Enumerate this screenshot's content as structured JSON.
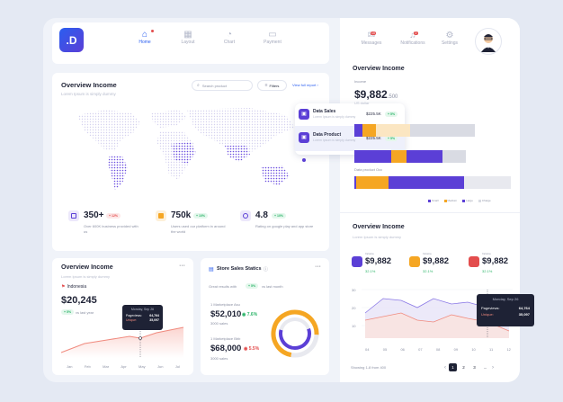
{
  "nav": {
    "logo": ".D",
    "items": [
      {
        "label": "Home"
      },
      {
        "label": "Layout"
      },
      {
        "label": "Chart"
      },
      {
        "label": "Payment"
      }
    ],
    "right": [
      {
        "label": "Messages",
        "badge": "10"
      },
      {
        "label": "Notifications",
        "badge": "2"
      },
      {
        "label": "Settings"
      }
    ]
  },
  "overview": {
    "title": "Overview Income",
    "subtitle": "Lorem Ipsum is simply dummy",
    "search_placeholder": "Search product",
    "filter_label": "Filters",
    "report_link": "View full report",
    "popup": [
      {
        "title": "Data Sales",
        "sub": "Lorem Ipsum is simply dummy",
        "value": "$225.5K",
        "change": "+ 5%"
      },
      {
        "title": "Data Product",
        "sub": "Lorem Ipsum is simply dummy",
        "value": "$225.5K",
        "change": "+ 5%"
      }
    ],
    "stats": [
      {
        "value": "350+",
        "change": "+ 12%",
        "desc": "Over 600K business provided with us",
        "color": "#5b3fd6"
      },
      {
        "value": "750k",
        "change": "+ 10%",
        "desc": "Users used our platform in around the world",
        "color": "#f5a623"
      },
      {
        "value": "4.8",
        "change": "+ 10%",
        "desc": "Rating on google play and app store",
        "color": "#5b3fd6"
      }
    ]
  },
  "income_small": {
    "title": "Overview Income",
    "subtitle": "Lorem Ipsum is simply dummy",
    "country": "Indonesia",
    "value": "$20,245",
    "change": "+ 5%",
    "change_text": "vs last year",
    "tooltip_date": "Monday, Sep 26",
    "tooltip_pv_label": "Pageviews:",
    "tooltip_pv": "64,764",
    "tooltip_uq_label": "Unique:",
    "tooltip_uq": "35,097",
    "months": [
      "Jan",
      "Feb",
      "Mar",
      "Apr",
      "May",
      "Jun",
      "Jul"
    ]
  },
  "store": {
    "title": "Store Sales Statics",
    "growth_label": "Great results with",
    "growth_pill": "+ 5%",
    "growth_tail": "vs last month",
    "items": [
      {
        "name": "1 Marketplace Asu",
        "value": "$52,010",
        "change": "7.6%",
        "unit": "3000 sales",
        "color": "#2fb56b"
      },
      {
        "name": "1 Marketplace Bbb",
        "value": "$68,000",
        "change": "5.5%",
        "unit": "3000 sales",
        "color": "#e34d4d"
      }
    ]
  },
  "right_income": {
    "title": "Overview Income",
    "income_label": "Income",
    "income_value": "$9,882",
    "income_dec": ".500",
    "income_sub": "US dollar",
    "bar_label": "Data product Occ",
    "legend": [
      "Small",
      "Medium",
      "Large",
      "Charge"
    ],
    "bars": [
      [
        {
          "w": 0.07,
          "c": "#5b3fd6"
        },
        {
          "w": 0.11,
          "c": "#f5a623"
        },
        {
          "w": 0.28,
          "c": "#fbe6c2"
        },
        {
          "w": 0.54,
          "c": "#d9dbe3"
        }
      ],
      [
        {
          "w": 0.33,
          "c": "#5b3fd6"
        },
        {
          "w": 0.14,
          "c": "#f5a623"
        },
        {
          "w": 0.32,
          "c": "#5b3fd6"
        },
        {
          "w": 0.21,
          "c": "#d9dbe3"
        }
      ],
      [
        {
          "w": 0.01,
          "c": "#5b3fd6"
        },
        {
          "w": 0.02,
          "c": "#f5a623"
        },
        {
          "w": 0.19,
          "c": "#f5a623"
        },
        {
          "w": 0.48,
          "c": "#5b3fd6"
        },
        {
          "w": 0.3,
          "c": "#e8e9ef"
        }
      ]
    ]
  },
  "right_income2": {
    "title": "Overview Income",
    "subtitle": "Lorem Ipsum is simply dummy",
    "stats": [
      {
        "label": "Income",
        "value": "$9,882",
        "change": "32.1%",
        "color": "#5b3fd6"
      },
      {
        "label": "Income",
        "value": "$9,882",
        "change": "32.1%",
        "color": "#f5a623"
      },
      {
        "label": "Income",
        "value": "$9,882",
        "change": "32.1%",
        "color": "#e34d4d"
      }
    ],
    "yaxis": [
      "30",
      "20",
      "10"
    ],
    "xaxis": [
      "04",
      "05",
      "06",
      "07",
      "08",
      "09",
      "10",
      "11",
      "12"
    ],
    "tooltip_date": "Monday, Sep 26",
    "tooltip_pv_label": "Pageviews:",
    "tooltip_pv": "64,764",
    "tooltip_uq_label": "Unique:",
    "tooltip_uq": "35,097",
    "pagination_text": "Showing 1-8 from 400",
    "pages": [
      "1",
      "2",
      "3",
      "..."
    ]
  }
}
